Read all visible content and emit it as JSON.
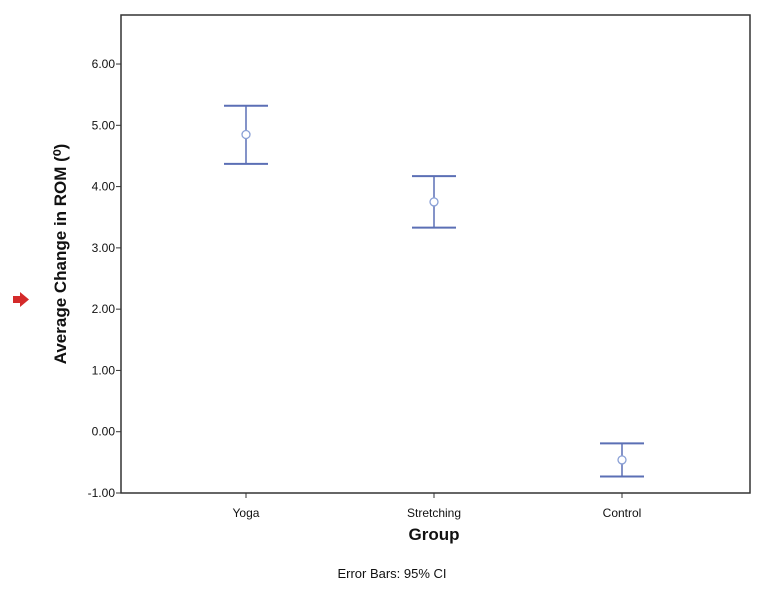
{
  "chart_data": {
    "type": "errorbar",
    "categories": [
      "Yoga",
      "Stretching",
      "Control"
    ],
    "series": [
      {
        "mean": [
          4.85,
          3.75,
          -0.46
        ],
        "ci_low": [
          4.37,
          3.33,
          -0.73
        ],
        "ci_high": [
          5.32,
          4.17,
          -0.19
        ]
      }
    ],
    "xlabel": "Group",
    "ylabel": "Average Change in ROM (⁰)",
    "yticks": [
      "6.00",
      "5.00",
      "4.00",
      "3.00",
      "2.00",
      "1.00",
      "0.00",
      "-1.00"
    ],
    "ylim": [
      -1.0,
      6.8
    ],
    "footnote": "Error Bars: 95% CI",
    "colors": {
      "bar": "#5b6fb5",
      "marker": "#8aa0d6",
      "axis": "#333333",
      "pointer": "#d42a2a"
    },
    "grid": false,
    "pointer_icon": "red-arrow-icon"
  }
}
